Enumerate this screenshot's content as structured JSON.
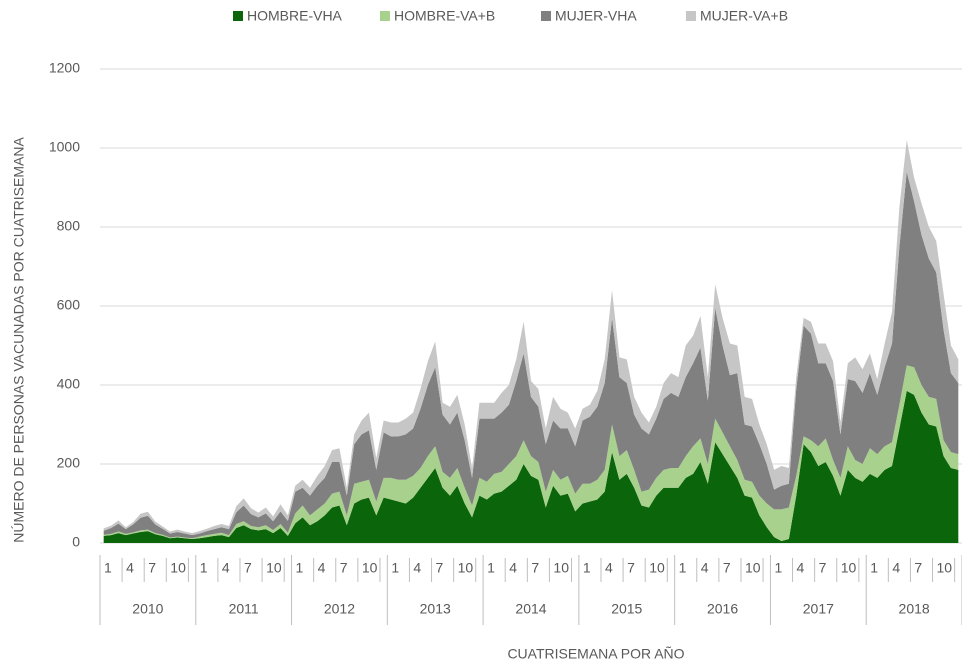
{
  "chart_data": {
    "type": "stacked_area",
    "x_label": "CUATRISEMANA  POR AÑO",
    "y_label": "NÚMERO DE PERSONAS VACUNADAS  POR CUATRISEMANA",
    "categories": [
      "1",
      null,
      null,
      "4",
      null,
      null,
      "7",
      null,
      null,
      "10",
      null,
      null,
      null,
      "1",
      null,
      null,
      "4",
      null,
      null,
      "7",
      null,
      null,
      "10",
      null,
      null,
      null,
      "1",
      null,
      null,
      "4",
      null,
      null,
      "7",
      null,
      null,
      "10",
      null,
      null,
      null,
      "1",
      null,
      null,
      "4",
      null,
      null,
      "7",
      null,
      null,
      "10",
      null,
      null,
      null,
      "1",
      null,
      null,
      "4",
      null,
      null,
      "7",
      null,
      null,
      "10",
      null,
      null,
      null,
      "1",
      null,
      null,
      "4",
      null,
      null,
      "7",
      null,
      null,
      "10",
      null,
      null,
      null,
      "1",
      null,
      null,
      "4",
      null,
      null,
      "7",
      null,
      null,
      "10",
      null,
      null,
      null,
      "1",
      null,
      null,
      "4",
      null,
      null,
      "7",
      null,
      null,
      "10",
      null,
      null,
      null,
      "1",
      null,
      null,
      "4",
      null,
      null,
      "7",
      null,
      null,
      "10",
      null,
      null,
      null
    ],
    "groups": [
      "2010",
      "2011",
      "2012",
      "2013",
      "2014",
      "2015",
      "2016",
      "2017",
      "2018"
    ],
    "ylim": [
      0,
      1200
    ],
    "yticks": [
      0,
      200,
      400,
      600,
      800,
      1000,
      1200
    ],
    "grid": true,
    "legend": "top",
    "series": [
      {
        "name": "HOMBRE-VHA",
        "color": "#0b650b",
        "values": [
          18,
          20,
          25,
          20,
          24,
          28,
          30,
          22,
          18,
          12,
          14,
          12,
          10,
          12,
          15,
          18,
          20,
          15,
          38,
          45,
          35,
          32,
          35,
          25,
          38,
          18,
          50,
          65,
          45,
          55,
          70,
          90,
          95,
          45,
          100,
          110,
          115,
          70,
          115,
          110,
          105,
          100,
          115,
          140,
          165,
          190,
          140,
          120,
          145,
          100,
          65,
          120,
          110,
          125,
          130,
          145,
          160,
          200,
          170,
          160,
          90,
          145,
          120,
          125,
          80,
          100,
          105,
          110,
          130,
          230,
          160,
          175,
          140,
          95,
          90,
          120,
          140,
          140,
          140,
          165,
          175,
          205,
          150,
          255,
          225,
          195,
          165,
          120,
          115,
          70,
          40,
          15,
          5,
          10,
          120,
          250,
          230,
          195,
          205,
          170,
          120,
          185,
          165,
          155,
          175,
          165,
          185,
          195,
          290,
          385,
          375,
          330,
          300,
          295,
          220,
          190,
          185
        ]
      },
      {
        "name": "HOMBRE-VA+B",
        "color": "#a9d18e",
        "values": [
          3,
          3,
          4,
          3,
          3,
          4,
          4,
          3,
          3,
          2,
          2,
          2,
          2,
          4,
          5,
          5,
          6,
          5,
          10,
          10,
          8,
          8,
          10,
          8,
          10,
          8,
          25,
          30,
          25,
          30,
          30,
          35,
          35,
          25,
          50,
          45,
          45,
          35,
          50,
          55,
          55,
          60,
          55,
          50,
          55,
          55,
          40,
          45,
          45,
          40,
          30,
          45,
          45,
          50,
          50,
          55,
          60,
          60,
          50,
          45,
          40,
          40,
          40,
          45,
          45,
          50,
          45,
          50,
          55,
          70,
          60,
          60,
          45,
          35,
          45,
          45,
          45,
          50,
          50,
          55,
          70,
          60,
          50,
          60,
          55,
          50,
          45,
          40,
          40,
          50,
          60,
          70,
          80,
          80,
          50,
          20,
          30,
          50,
          60,
          40,
          45,
          60,
          45,
          45,
          65,
          60,
          60,
          60,
          60,
          65,
          70,
          70,
          70,
          70,
          40,
          40,
          40
        ]
      },
      {
        "name": "MUJER-VHA",
        "color": "#808080",
        "values": [
          10,
          15,
          20,
          12,
          20,
          32,
          35,
          22,
          15,
          10,
          12,
          10,
          8,
          8,
          10,
          12,
          14,
          15,
          30,
          40,
          30,
          25,
          30,
          22,
          32,
          30,
          55,
          45,
          50,
          60,
          65,
          80,
          75,
          50,
          100,
          120,
          125,
          80,
          115,
          105,
          110,
          115,
          120,
          150,
          180,
          200,
          145,
          135,
          140,
          120,
          70,
          150,
          160,
          140,
          150,
          150,
          190,
          220,
          150,
          140,
          120,
          125,
          130,
          120,
          120,
          160,
          170,
          185,
          220,
          270,
          200,
          170,
          140,
          160,
          140,
          150,
          180,
          190,
          180,
          200,
          210,
          230,
          160,
          280,
          220,
          180,
          220,
          140,
          140,
          130,
          100,
          50,
          60,
          60,
          220,
          280,
          270,
          210,
          190,
          200,
          110,
          170,
          200,
          180,
          190,
          150,
          200,
          250,
          400,
          490,
          420,
          380,
          350,
          320,
          280,
          200,
          180
        ]
      },
      {
        "name": "MUJER-VA+B",
        "color": "#c6c6c6",
        "values": [
          6,
          6,
          8,
          5,
          6,
          10,
          10,
          7,
          6,
          5,
          6,
          5,
          5,
          6,
          6,
          8,
          8,
          8,
          15,
          18,
          15,
          12,
          15,
          12,
          18,
          14,
          15,
          20,
          20,
          25,
          30,
          30,
          35,
          20,
          25,
          35,
          45,
          30,
          30,
          35,
          35,
          40,
          40,
          50,
          60,
          65,
          30,
          45,
          45,
          40,
          25,
          40,
          40,
          40,
          50,
          50,
          55,
          80,
          40,
          45,
          40,
          60,
          50,
          40,
          45,
          30,
          30,
          40,
          60,
          70,
          50,
          60,
          45,
          40,
          30,
          30,
          40,
          50,
          50,
          80,
          70,
          80,
          60,
          60,
          70,
          80,
          70,
          70,
          70,
          50,
          50,
          50,
          50,
          40,
          30,
          20,
          30,
          50,
          50,
          50,
          30,
          40,
          60,
          60,
          50,
          40,
          60,
          80,
          100,
          80,
          60,
          80,
          80,
          80,
          90,
          70,
          60
        ]
      }
    ]
  }
}
